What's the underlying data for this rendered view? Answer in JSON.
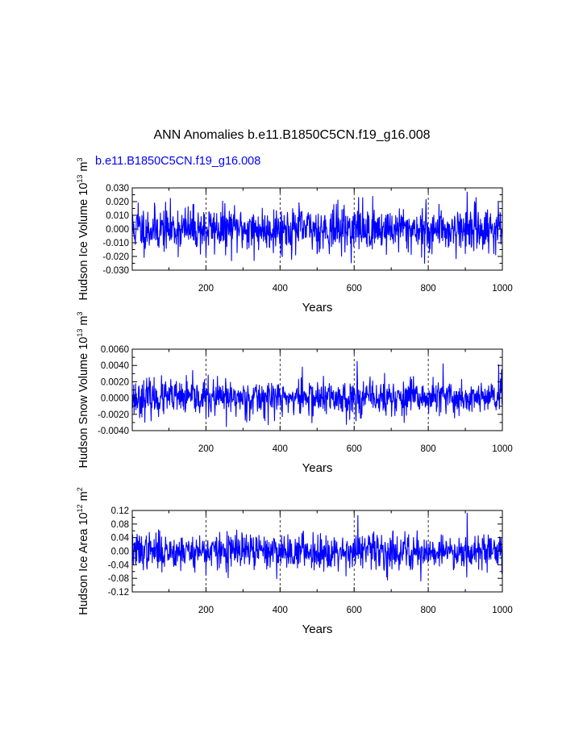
{
  "title": "ANN Anomalies b.e11.B1850C5CN.f19_g16.008",
  "subtitle": "b.e11.B1850C5CN.f19_g16.008",
  "colors": {
    "line": "#0000ff",
    "subtitle": "#0000ff",
    "axis": "#000000",
    "gridline": "#000000"
  },
  "chart_data": [
    {
      "type": "line",
      "ylabel": "Hudson Ice Volume 10",
      "ylabel_exp": "13",
      "ylabel_unit": " m",
      "ylabel_unit_exp": "3",
      "xlabel": "Years",
      "xlim": [
        1,
        1000
      ],
      "ylim": [
        -0.03,
        0.03
      ],
      "xticks": [
        200,
        400,
        600,
        800,
        1000
      ],
      "xtick_labels": [
        "200",
        "400",
        "600",
        "800",
        "1000"
      ],
      "yticks": [
        -0.03,
        -0.02,
        -0.01,
        0.0,
        0.01,
        0.02,
        0.03
      ],
      "ytick_labels": [
        "-0.030",
        "-0.020",
        "-0.010",
        "0.000",
        "0.010",
        "0.020",
        "0.030"
      ],
      "grid": "vertical dashed at 200, 400, 600, 800",
      "series": [
        {
          "x_start": 1,
          "x_step": 1,
          "count": 1000,
          "seed": 11,
          "std": 0.0082,
          "min": -0.025,
          "max": 0.027,
          "spikes": [
            [
              17,
              0.019
            ],
            [
              200,
              -0.02
            ],
            [
              330,
              -0.023
            ],
            [
              612,
              0.023
            ],
            [
              790,
              -0.025
            ],
            [
              905,
              0.027
            ],
            [
              960,
              0.014
            ]
          ]
        }
      ]
    },
    {
      "type": "line",
      "ylabel": "Hudson Snow Volume 10",
      "ylabel_exp": "13",
      "ylabel_unit": " m",
      "ylabel_unit_exp": "3",
      "xlabel": "Years",
      "xlim": [
        1,
        1000
      ],
      "ylim": [
        -0.004,
        0.006
      ],
      "xticks": [
        200,
        400,
        600,
        800,
        1000
      ],
      "xtick_labels": [
        "200",
        "400",
        "600",
        "800",
        "1000"
      ],
      "yticks": [
        -0.004,
        -0.002,
        0.0,
        0.002,
        0.004,
        0.006
      ],
      "ytick_labels": [
        "-0.0040",
        "-0.0020",
        "0.0000",
        "0.0020",
        "0.0040",
        "0.0060"
      ],
      "grid": "vertical dashed at 200, 400, 600, 800",
      "series": [
        {
          "x_start": 1,
          "x_step": 1,
          "count": 1000,
          "seed": 23,
          "std": 0.0011,
          "min": -0.0035,
          "max": 0.0045,
          "spikes": [
            [
              255,
              -0.0035
            ],
            [
              460,
              0.0038
            ],
            [
              608,
              0.0045
            ],
            [
              735,
              -0.003
            ],
            [
              840,
              0.0042
            ],
            [
              990,
              0.0041
            ]
          ]
        }
      ]
    },
    {
      "type": "line",
      "ylabel": "Hudson Ice Area 10",
      "ylabel_exp": "12",
      "ylabel_unit": " m",
      "ylabel_unit_exp": "2",
      "xlabel": "Years",
      "xlim": [
        1,
        1000
      ],
      "ylim": [
        -0.12,
        0.12
      ],
      "xticks": [
        200,
        400,
        600,
        800,
        1000
      ],
      "xtick_labels": [
        "200",
        "400",
        "600",
        "800",
        "1000"
      ],
      "yticks": [
        -0.12,
        -0.08,
        -0.04,
        0.0,
        0.04,
        0.08,
        0.12
      ],
      "ytick_labels": [
        "-0.12",
        "-0.08",
        "-0.04",
        "0.00",
        "0.04",
        "0.08",
        "0.12"
      ],
      "grid": "vertical dashed at 200, 400, 600, 800",
      "series": [
        {
          "x_start": 1,
          "x_step": 1,
          "count": 1000,
          "seed": 37,
          "std": 0.026,
          "min": -0.088,
          "max": 0.112,
          "spikes": [
            [
              610,
              0.105
            ],
            [
              905,
              0.112
            ],
            [
              690,
              -0.085
            ],
            [
              780,
              -0.088
            ],
            [
              200,
              -0.07
            ],
            [
              260,
              -0.078
            ]
          ]
        }
      ]
    }
  ]
}
